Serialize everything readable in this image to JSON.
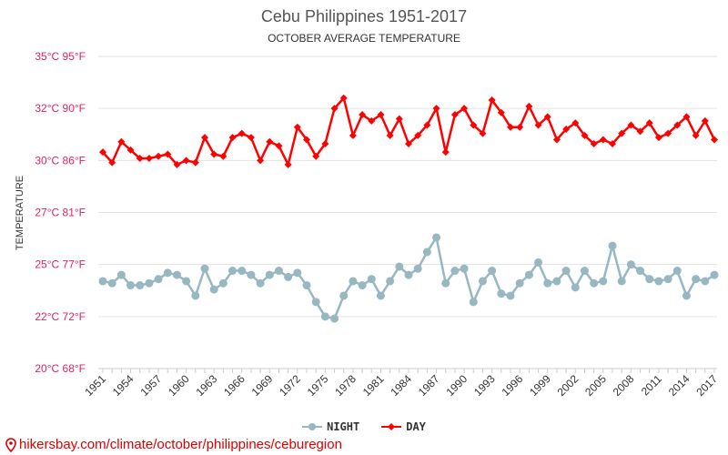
{
  "chart_data": {
    "type": "line",
    "title": "Cebu Philippines 1951-2017",
    "subtitle": "OCTOBER AVERAGE TEMPERATURE",
    "ylabel": "TEMPERATURE",
    "xlabel": "",
    "ylim": [
      20,
      35
    ],
    "yticks": [
      {
        "value": 20,
        "label": "20°C 68°F"
      },
      {
        "value": 22.5,
        "label": "22°C 72°F"
      },
      {
        "value": 25,
        "label": "25°C 77°F"
      },
      {
        "value": 27.5,
        "label": "27°C 81°F"
      },
      {
        "value": 30,
        "label": "30°C 86°F"
      },
      {
        "value": 32.5,
        "label": "32°C 90°F"
      },
      {
        "value": 35,
        "label": "35°C 95°F"
      }
    ],
    "xticks": [
      "1951",
      "1954",
      "1957",
      "1960",
      "1963",
      "1966",
      "1969",
      "1972",
      "1975",
      "1978",
      "1981",
      "1984",
      "1987",
      "1990",
      "1993",
      "1996",
      "1999",
      "2002",
      "2005",
      "2008",
      "2011",
      "2014",
      "2017"
    ],
    "x_start": 1951,
    "x_end": 2017,
    "grid": true,
    "legend_position": "bottom",
    "series": [
      {
        "name": "NIGHT",
        "color": "#97b7c1",
        "values": [
          24.2,
          24.1,
          24.5,
          24.0,
          24.0,
          24.1,
          24.3,
          24.6,
          24.5,
          24.2,
          23.5,
          24.8,
          23.8,
          24.1,
          24.7,
          24.7,
          24.5,
          24.1,
          24.5,
          24.7,
          24.4,
          24.6,
          24.0,
          23.2,
          22.5,
          22.4,
          23.5,
          24.2,
          24.0,
          24.3,
          23.5,
          24.2,
          24.9,
          24.5,
          24.8,
          25.6,
          26.3,
          24.1,
          24.7,
          24.8,
          23.2,
          24.2,
          24.7,
          23.6,
          23.5,
          24.1,
          24.5,
          25.1,
          24.1,
          24.2,
          24.7,
          23.9,
          24.7,
          24.1,
          24.2,
          25.9,
          24.2,
          25.0,
          24.7,
          24.3,
          24.2,
          24.3,
          24.7,
          23.5,
          24.3,
          24.2,
          24.5
        ]
      },
      {
        "name": "DAY",
        "color": "#ff0000",
        "values": [
          30.4,
          29.9,
          30.9,
          30.5,
          30.1,
          30.1,
          30.2,
          30.3,
          29.8,
          30.0,
          29.9,
          31.1,
          30.3,
          30.2,
          31.1,
          31.3,
          31.1,
          30.0,
          30.9,
          30.7,
          29.8,
          31.6,
          31.0,
          30.2,
          30.8,
          32.5,
          33.0,
          31.2,
          32.2,
          31.9,
          32.2,
          31.2,
          32.0,
          30.8,
          31.2,
          31.7,
          32.5,
          30.4,
          32.2,
          32.5,
          31.7,
          31.3,
          32.9,
          32.3,
          31.6,
          31.6,
          32.6,
          31.7,
          32.1,
          31.0,
          31.5,
          31.8,
          31.2,
          30.8,
          31.0,
          30.8,
          31.3,
          31.7,
          31.4,
          31.8,
          31.1,
          31.3,
          31.7,
          32.1,
          31.2,
          31.9,
          31.0
        ]
      }
    ]
  },
  "footer": {
    "url": "hikersbay.com/climate/october/philippines/ceburegion"
  }
}
